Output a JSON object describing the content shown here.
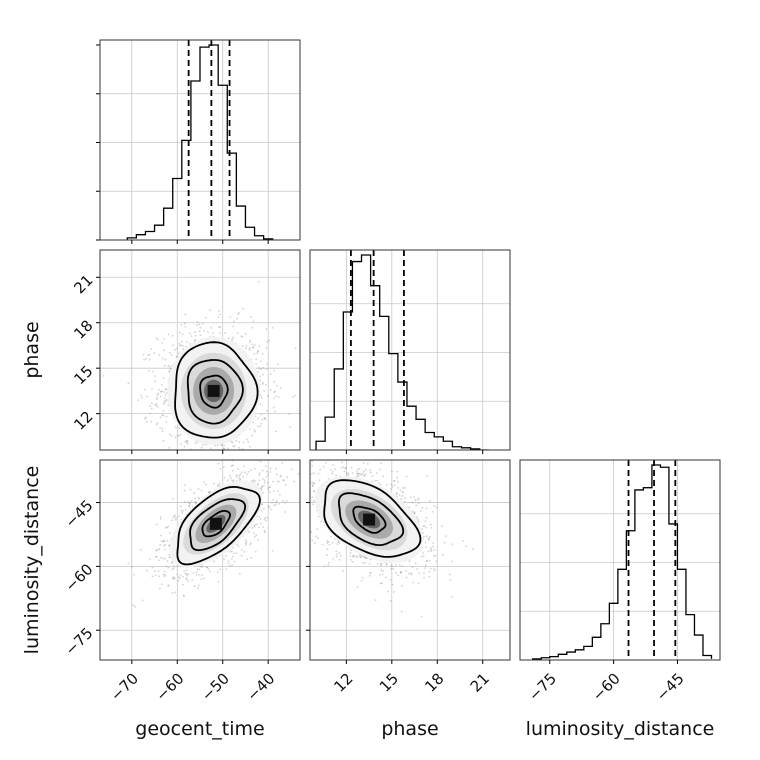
{
  "chart_data": {
    "type": "corner",
    "parameters": [
      "geocent_time",
      "phase",
      "luminosity_distance"
    ],
    "axis_labels": {
      "geocent_time": "geocent_time",
      "phase": "phase",
      "luminosity_distance": "luminosity_distance"
    },
    "grid": true,
    "ranges": {
      "geocent_time": [
        -77,
        -33
      ],
      "phase": [
        9.6,
        22.8
      ],
      "luminosity_distance": [
        -82,
        -35
      ]
    },
    "ticks": {
      "geocent_time": [
        -70,
        -60,
        -50,
        -40
      ],
      "phase": [
        12,
        15,
        18,
        21
      ],
      "luminosity_distance": [
        -75,
        -60,
        -45
      ]
    },
    "tick_labels": {
      "geocent_time": [
        "−70",
        "−60",
        "−50",
        "−40"
      ],
      "phase": [
        "12",
        "15",
        "18",
        "21"
      ],
      "luminosity_distance": [
        "−75",
        "−60",
        "−45"
      ]
    },
    "quantiles": {
      "geocent_time": [
        -57.5,
        -52.5,
        -48.5
      ],
      "phase": [
        12.3,
        13.8,
        15.8
      ],
      "luminosity_distance": [
        -56.5,
        -50.5,
        -45.5
      ]
    },
    "histograms": {
      "geocent_time": {
        "edges": [
          -71,
          -69,
          -67,
          -65,
          -63,
          -61,
          -59,
          -57,
          -55,
          -53,
          -51,
          -49,
          -47,
          -45,
          -43,
          -41,
          -39
        ],
        "counts": [
          0.01,
          0.025,
          0.04,
          0.07,
          0.15,
          0.29,
          0.47,
          0.75,
          0.91,
          0.92,
          0.73,
          0.41,
          0.16,
          0.06,
          0.02,
          0.005
        ]
      },
      "phase": {
        "edges": [
          10.0,
          10.6,
          11.2,
          11.8,
          12.4,
          13.0,
          13.6,
          14.2,
          14.8,
          15.4,
          16.0,
          16.6,
          17.2,
          17.8,
          18.4,
          19.0,
          19.6,
          20.2,
          20.8,
          21.4
        ],
        "counts": [
          0.04,
          0.15,
          0.37,
          0.63,
          0.86,
          0.89,
          0.75,
          0.61,
          0.44,
          0.31,
          0.2,
          0.14,
          0.08,
          0.06,
          0.04,
          0.015,
          0.01,
          0.005,
          0.0
        ]
      },
      "luminosity_distance": {
        "edges": [
          -79,
          -77,
          -75,
          -73,
          -71,
          -69,
          -67,
          -65,
          -63,
          -61,
          -59,
          -57,
          -55,
          -53,
          -51,
          -49,
          -47,
          -45,
          -43,
          -41,
          -39,
          -37
        ],
        "counts": [
          0.005,
          0.01,
          0.015,
          0.025,
          0.035,
          0.045,
          0.06,
          0.1,
          0.16,
          0.25,
          0.4,
          0.57,
          0.75,
          0.76,
          0.86,
          0.85,
          0.6,
          0.4,
          0.2,
          0.11,
          0.02,
          0.005
        ]
      }
    },
    "pairs": [
      {
        "x": "geocent_time",
        "y": "phase",
        "center": [
          -52.0,
          13.5
        ],
        "std": [
          6.0,
          2.1
        ],
        "correlation": 0.0,
        "contour_levels": [
          {
            "sigma": 0.5,
            "width": [
              8,
              2.5
            ]
          },
          {
            "sigma": 1.0,
            "width": [
              11,
              4.4
            ]
          },
          {
            "sigma": 1.5,
            "width": [
              17,
              7.2
            ]
          }
        ]
      },
      {
        "x": "geocent_time",
        "y": "luminosity_distance",
        "center": [
          -51.5,
          -50.0
        ],
        "std": [
          6.0,
          6.0
        ],
        "correlation": 0.6,
        "contour_levels": [
          {
            "sigma": 0.5
          },
          {
            "sigma": 1.0
          },
          {
            "sigma": 1.5
          }
        ]
      },
      {
        "x": "phase",
        "y": "luminosity_distance",
        "center": [
          13.5,
          -49.0
        ],
        "std": [
          2.1,
          6.0
        ],
        "correlation": -0.45,
        "contour_levels": [
          {
            "sigma": 0.5
          },
          {
            "sigma": 1.0
          },
          {
            "sigma": 1.5
          }
        ]
      }
    ]
  }
}
